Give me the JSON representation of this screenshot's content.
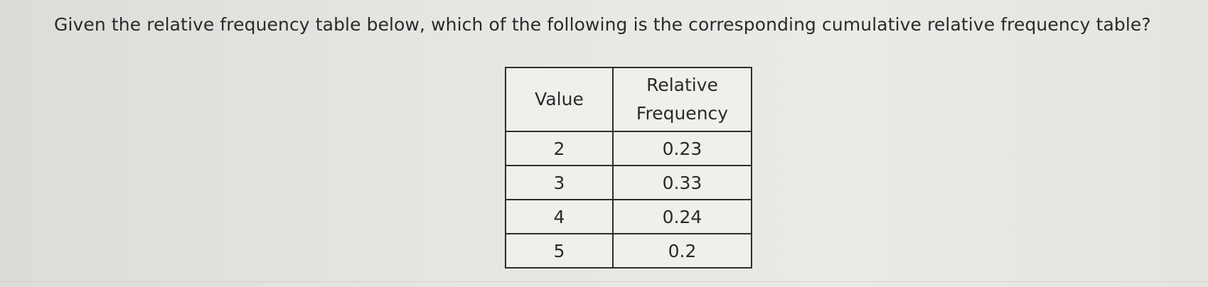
{
  "question": "Given the relative frequency table below, which of the following is the corresponding cumulative relative frequency table?",
  "table": {
    "header": [
      "Value",
      "Relative Frequency"
    ],
    "rows": [
      [
        "2",
        "0.23"
      ],
      [
        "3",
        "0.33"
      ],
      [
        "4",
        "0.24"
      ],
      [
        "5",
        "0.2"
      ]
    ]
  }
}
